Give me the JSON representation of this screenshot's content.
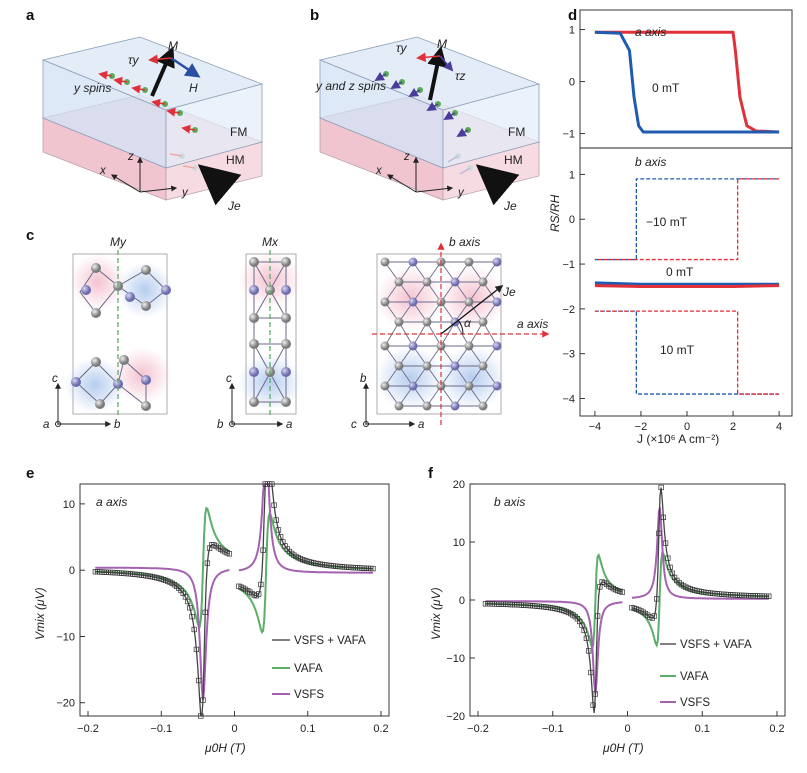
{
  "figure": {
    "panel_labels": [
      "a",
      "b",
      "c",
      "d",
      "e",
      "f"
    ]
  },
  "panel_a": {
    "torque": "τy",
    "magnetization": "M",
    "field": "H",
    "spins": "y spins",
    "fm": "FM",
    "hm": "HM",
    "current": "Je",
    "axes": [
      "x",
      "y",
      "z"
    ]
  },
  "panel_b": {
    "torque_y": "τy",
    "torque_z": "τz",
    "magnetization": "M",
    "spins": "y and z spins",
    "fm": "FM",
    "hm": "HM",
    "current": "Je",
    "axes": [
      "x",
      "y",
      "z"
    ]
  },
  "panel_c": {
    "mirror_y": "My",
    "mirror_x": "Mx",
    "b_axis": "b axis",
    "a_axis": "a axis",
    "current": "Je",
    "angle": "α",
    "axes_left": [
      "c",
      "a",
      "b"
    ],
    "axes_mid": [
      "c",
      "b",
      "a"
    ],
    "axes_right": [
      "b",
      "c",
      "a"
    ]
  },
  "colors": {
    "red": "#e0303a",
    "blue": "#1f5bb0",
    "green": "#5cae6a",
    "purple": "#a462b0",
    "gray": "#555555"
  },
  "chart_data": [
    {
      "id": "d-top",
      "type": "line",
      "annotation": "a axis",
      "field_label": "0 mT",
      "ylim": [
        -1.2,
        1.3
      ],
      "yticks": [
        "1",
        "0",
        "−1"
      ],
      "series": [
        {
          "color": "red",
          "x": [
            -4,
            2,
            2.1,
            2.3,
            2.6,
            3,
            4
          ],
          "y": [
            0.95,
            0.95,
            0.6,
            -0.3,
            -0.85,
            -0.95,
            -0.97
          ]
        },
        {
          "color": "blue",
          "x": [
            -4,
            -2.9,
            -2.5,
            -2.3,
            -2.1,
            -1.9,
            4
          ],
          "y": [
            0.95,
            0.93,
            0.6,
            -0.3,
            -0.85,
            -0.97,
            -0.97
          ]
        }
      ]
    },
    {
      "id": "d-bottom",
      "type": "line",
      "annotation": "b axis",
      "xlabel": "J (×10⁶ A cm⁻²)",
      "ylabel": "RS/RH",
      "ylim": [
        -4.3,
        1.5
      ],
      "yticks": [
        "1",
        "0",
        "−1",
        "−2",
        "−3",
        "−4"
      ],
      "xticks": [
        "−4",
        "−2",
        "0",
        "2",
        "4"
      ],
      "labels": [
        "−10 mT",
        "0 mT",
        "10 mT"
      ],
      "series": [
        {
          "name": "−10 mT up",
          "color": "blue",
          "dash": true,
          "x": [
            -4,
            -2.2,
            -2.2,
            4
          ],
          "y": [
            -0.9,
            -0.9,
            0.9,
            0.9
          ]
        },
        {
          "name": "−10 mT down",
          "color": "red",
          "dash": true,
          "x": [
            4,
            2.2,
            2.2,
            -4
          ],
          "y": [
            0.9,
            0.9,
            -0.9,
            -0.9
          ]
        },
        {
          "name": "0 mT blue",
          "color": "blue",
          "x": [
            -4,
            -2,
            0,
            2,
            4
          ],
          "y": [
            -1.42,
            -1.45,
            -1.45,
            -1.45,
            -1.45
          ]
        },
        {
          "name": "0 mT red",
          "color": "red",
          "x": [
            -4,
            -2,
            0,
            2,
            4
          ],
          "y": [
            -1.48,
            -1.5,
            -1.5,
            -1.5,
            -1.48
          ]
        },
        {
          "name": "10 mT up",
          "color": "blue",
          "dash": true,
          "x": [
            -4,
            -2.2,
            -2.2,
            4
          ],
          "y": [
            -2.05,
            -2.05,
            -3.9,
            -3.9
          ]
        },
        {
          "name": "10 mT down",
          "color": "red",
          "dash": true,
          "x": [
            4,
            2.2,
            2.2,
            -4
          ],
          "y": [
            -3.9,
            -3.9,
            -2.05,
            -2.05
          ]
        }
      ]
    },
    {
      "id": "e",
      "type": "line",
      "annotation": "a axis",
      "xlabel": "μ0H (T)",
      "ylabel": "Vmix (μV)",
      "xlim": [
        -0.2,
        0.2
      ],
      "ylim": [
        -22,
        13
      ],
      "xticks": [
        "−0.2",
        "−0.1",
        "0",
        "0.1",
        "0.2"
      ],
      "yticks": [
        "10",
        "0",
        "−10",
        "−20"
      ],
      "legend": [
        "VSFS + VAFA",
        "VAFA",
        "VSFS"
      ],
      "resonance": 0.043,
      "width": 0.005,
      "sym_amp": -20,
      "anti_amp": -9,
      "offset_neg": 0.4,
      "offset_pos": -0.4
    },
    {
      "id": "f",
      "type": "line",
      "annotation": "b axis",
      "xlabel": "μ0H (T)",
      "ylabel": "Vmix (μV)",
      "xlim": [
        -0.2,
        0.2
      ],
      "ylim": [
        -20,
        20
      ],
      "xticks": [
        "−0.2",
        "−0.1",
        "0",
        "0.1",
        "0.2"
      ],
      "yticks": [
        "20",
        "10",
        "0",
        "−10",
        "−20"
      ],
      "legend": [
        "VSFS + VAFA",
        "VAFA",
        "VSFS"
      ],
      "resonance": 0.043,
      "width": 0.004,
      "sym_amp": -16,
      "anti_amp": -8,
      "offset_neg": -0.2,
      "offset_pos": 0.2
    }
  ]
}
